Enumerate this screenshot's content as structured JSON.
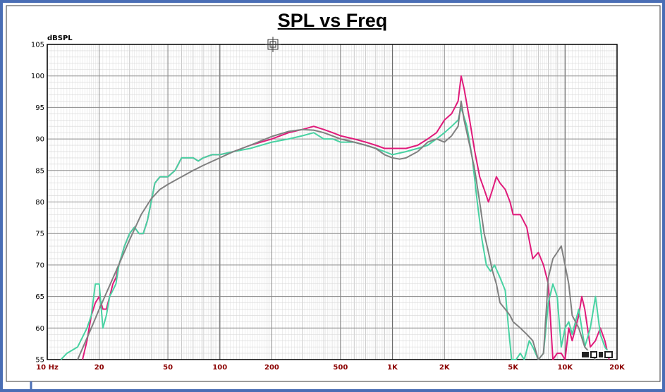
{
  "chart_data": {
    "type": "line",
    "title": "SPL vs Freq",
    "ylabel": "dBSPL",
    "xlabel": "",
    "xscale": "log",
    "xlim": [
      10,
      20000
    ],
    "ylim": [
      55,
      105
    ],
    "grid": true,
    "legend": "none",
    "x_ticks": [
      {
        "value": 10,
        "label": "10 Hz"
      },
      {
        "value": 20,
        "label": "20"
      },
      {
        "value": 50,
        "label": "50"
      },
      {
        "value": 100,
        "label": "100"
      },
      {
        "value": 200,
        "label": "200"
      },
      {
        "value": 500,
        "label": "500"
      },
      {
        "value": 1000,
        "label": "1K"
      },
      {
        "value": 2000,
        "label": "2K"
      },
      {
        "value": 5000,
        "label": "5K"
      },
      {
        "value": 10000,
        "label": "10K"
      },
      {
        "value": 20000,
        "label": "20K"
      }
    ],
    "y_ticks": [
      {
        "value": 55,
        "label": "55"
      },
      {
        "value": 60,
        "label": "60"
      },
      {
        "value": 65,
        "label": "65"
      },
      {
        "value": 70,
        "label": "70"
      },
      {
        "value": 75,
        "label": "75"
      },
      {
        "value": 80,
        "label": "80"
      },
      {
        "value": 85,
        "label": "85"
      },
      {
        "value": 90,
        "label": "90"
      },
      {
        "value": 95,
        "label": "95"
      },
      {
        "value": 100,
        "label": "100"
      },
      {
        "value": 105,
        "label": "105"
      }
    ],
    "series": [
      {
        "color": "#e01a7a",
        "points": [
          [
            16,
            55
          ],
          [
            17,
            58
          ],
          [
            18,
            62
          ],
          [
            19,
            64
          ],
          [
            20,
            65
          ],
          [
            21,
            63
          ],
          [
            22,
            63
          ],
          [
            23,
            65
          ],
          [
            24,
            67
          ],
          [
            25,
            68
          ],
          [
            26,
            70
          ],
          [
            28,
            73
          ],
          [
            30,
            75
          ],
          [
            32,
            76
          ],
          [
            34,
            75
          ],
          [
            36,
            75
          ],
          [
            38,
            77
          ],
          [
            40,
            80
          ],
          [
            42,
            83
          ],
          [
            45,
            84
          ],
          [
            50,
            84
          ],
          [
            55,
            85
          ],
          [
            60,
            87
          ],
          [
            65,
            87
          ],
          [
            70,
            87
          ],
          [
            75,
            86.5
          ],
          [
            80,
            87
          ],
          [
            90,
            87.5
          ],
          [
            100,
            87.5
          ],
          [
            120,
            88
          ],
          [
            150,
            89
          ],
          [
            200,
            90
          ],
          [
            250,
            91
          ],
          [
            300,
            91.5
          ],
          [
            350,
            92
          ],
          [
            400,
            91.5
          ],
          [
            450,
            91
          ],
          [
            500,
            90.5
          ],
          [
            600,
            90
          ],
          [
            700,
            89.5
          ],
          [
            800,
            89
          ],
          [
            900,
            88.5
          ],
          [
            1000,
            88.5
          ],
          [
            1200,
            88.5
          ],
          [
            1400,
            89
          ],
          [
            1600,
            90
          ],
          [
            1800,
            91
          ],
          [
            2000,
            93
          ],
          [
            2200,
            94
          ],
          [
            2400,
            96
          ],
          [
            2500,
            100
          ],
          [
            2600,
            98
          ],
          [
            2800,
            93
          ],
          [
            3000,
            88
          ],
          [
            3200,
            84
          ],
          [
            3400,
            82
          ],
          [
            3600,
            80
          ],
          [
            3800,
            82
          ],
          [
            4000,
            84
          ],
          [
            4200,
            83
          ],
          [
            4500,
            82
          ],
          [
            4800,
            80
          ],
          [
            5000,
            78
          ],
          [
            5500,
            78
          ],
          [
            6000,
            76
          ],
          [
            6500,
            71
          ],
          [
            7000,
            72
          ],
          [
            7500,
            70
          ],
          [
            8000,
            67
          ],
          [
            8500,
            55
          ],
          [
            9000,
            56
          ],
          [
            9500,
            56
          ],
          [
            10000,
            55
          ],
          [
            10500,
            60
          ],
          [
            11000,
            58
          ],
          [
            12000,
            62
          ],
          [
            12500,
            65
          ],
          [
            13000,
            63
          ],
          [
            14000,
            57
          ],
          [
            15000,
            58
          ],
          [
            16000,
            60
          ],
          [
            17000,
            58
          ],
          [
            18000,
            55
          ]
        ]
      },
      {
        "color": "#48d2a2",
        "points": [
          [
            12,
            55
          ],
          [
            13,
            56
          ],
          [
            15,
            57
          ],
          [
            17,
            60
          ],
          [
            18,
            62
          ],
          [
            19,
            67
          ],
          [
            20,
            67
          ],
          [
            21,
            60
          ],
          [
            22,
            62
          ],
          [
            23,
            65
          ],
          [
            24,
            66
          ],
          [
            25,
            67
          ],
          [
            26,
            70
          ],
          [
            28,
            73
          ],
          [
            30,
            75
          ],
          [
            32,
            76
          ],
          [
            34,
            75
          ],
          [
            36,
            75
          ],
          [
            38,
            77
          ],
          [
            40,
            80
          ],
          [
            42,
            83
          ],
          [
            45,
            84
          ],
          [
            50,
            84
          ],
          [
            55,
            85
          ],
          [
            60,
            87
          ],
          [
            65,
            87
          ],
          [
            70,
            87
          ],
          [
            75,
            86.5
          ],
          [
            80,
            87
          ],
          [
            90,
            87.5
          ],
          [
            100,
            87.5
          ],
          [
            120,
            88
          ],
          [
            150,
            88.5
          ],
          [
            200,
            89.5
          ],
          [
            250,
            90
          ],
          [
            300,
            90.5
          ],
          [
            350,
            91
          ],
          [
            400,
            90
          ],
          [
            450,
            90
          ],
          [
            500,
            89.5
          ],
          [
            600,
            89.5
          ],
          [
            700,
            89
          ],
          [
            800,
            88.5
          ],
          [
            900,
            88
          ],
          [
            1000,
            87.5
          ],
          [
            1200,
            88
          ],
          [
            1400,
            88.5
          ],
          [
            1600,
            89
          ],
          [
            1800,
            90
          ],
          [
            2000,
            91
          ],
          [
            2200,
            92
          ],
          [
            2400,
            93
          ],
          [
            2500,
            95
          ],
          [
            2700,
            92
          ],
          [
            2900,
            87
          ],
          [
            3100,
            80
          ],
          [
            3300,
            74
          ],
          [
            3500,
            70
          ],
          [
            3700,
            69
          ],
          [
            3900,
            70
          ],
          [
            4200,
            68
          ],
          [
            4500,
            66
          ],
          [
            4700,
            60
          ],
          [
            4900,
            55
          ],
          [
            5200,
            55
          ],
          [
            5500,
            56
          ],
          [
            5800,
            55
          ],
          [
            6200,
            58
          ],
          [
            6500,
            57
          ],
          [
            7000,
            55
          ],
          [
            7500,
            56
          ],
          [
            8000,
            64
          ],
          [
            8500,
            67
          ],
          [
            9000,
            65
          ],
          [
            9500,
            57
          ],
          [
            10000,
            60
          ],
          [
            10500,
            61
          ],
          [
            11000,
            59
          ],
          [
            12000,
            63
          ],
          [
            13000,
            57
          ],
          [
            14000,
            60
          ],
          [
            15000,
            65
          ],
          [
            16000,
            59
          ],
          [
            17000,
            57
          ],
          [
            18000,
            56
          ]
        ]
      },
      {
        "color": "#808080",
        "points": [
          [
            15,
            55
          ],
          [
            18,
            60
          ],
          [
            20,
            63
          ],
          [
            25,
            69
          ],
          [
            30,
            74
          ],
          [
            35,
            78
          ],
          [
            40,
            80.5
          ],
          [
            45,
            82
          ],
          [
            50,
            82.8
          ],
          [
            60,
            84
          ],
          [
            70,
            85
          ],
          [
            80,
            85.8
          ],
          [
            100,
            87
          ],
          [
            120,
            88
          ],
          [
            150,
            89
          ],
          [
            200,
            90.4
          ],
          [
            250,
            91.2
          ],
          [
            300,
            91.5
          ],
          [
            350,
            91.4
          ],
          [
            400,
            91
          ],
          [
            500,
            90
          ],
          [
            600,
            89.5
          ],
          [
            700,
            89
          ],
          [
            800,
            88.5
          ],
          [
            900,
            87.5
          ],
          [
            1000,
            87
          ],
          [
            1100,
            86.8
          ],
          [
            1200,
            87
          ],
          [
            1400,
            88
          ],
          [
            1600,
            89.5
          ],
          [
            1800,
            90
          ],
          [
            2000,
            89.5
          ],
          [
            2200,
            90.5
          ],
          [
            2400,
            92
          ],
          [
            2500,
            96
          ],
          [
            2600,
            93
          ],
          [
            2800,
            89
          ],
          [
            3000,
            85
          ],
          [
            3200,
            80
          ],
          [
            3400,
            75
          ],
          [
            3600,
            72
          ],
          [
            3800,
            69
          ],
          [
            4000,
            67
          ],
          [
            4200,
            64
          ],
          [
            4500,
            63
          ],
          [
            4800,
            62
          ],
          [
            5000,
            61
          ],
          [
            5500,
            60
          ],
          [
            6000,
            59
          ],
          [
            6500,
            58
          ],
          [
            7000,
            55
          ],
          [
            7500,
            56
          ],
          [
            8000,
            68
          ],
          [
            8500,
            71
          ],
          [
            9000,
            72
          ],
          [
            9500,
            73
          ],
          [
            10000,
            70
          ],
          [
            10500,
            67
          ],
          [
            11000,
            62
          ],
          [
            12000,
            60
          ],
          [
            13000,
            57
          ],
          [
            14000,
            56
          ],
          [
            15000,
            55
          ]
        ]
      }
    ]
  }
}
